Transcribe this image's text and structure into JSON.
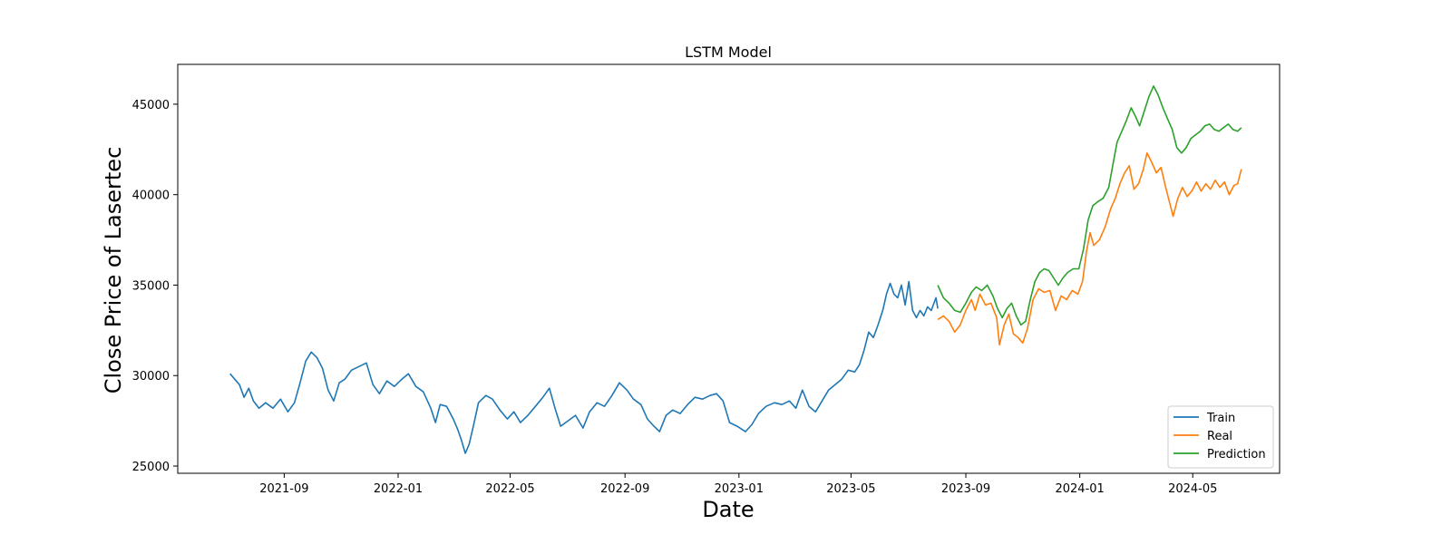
{
  "chart_data": {
    "type": "line",
    "title": "LSTM Model",
    "xlabel": "Date",
    "ylabel": "Close Price of Lasertec",
    "x_ticks": [
      "2021-09",
      "2022-01",
      "2022-05",
      "2022-09",
      "2023-01",
      "2023-05",
      "2023-09",
      "2024-01",
      "2024-05"
    ],
    "y_ticks": [
      25000,
      30000,
      35000,
      40000,
      45000
    ],
    "xlim": [
      "2021-05-10",
      "2024-08-02"
    ],
    "ylim": [
      24600,
      47200
    ],
    "grid": false,
    "legend_position": "bottom-right",
    "series": [
      {
        "name": "Train",
        "color": "#1f77b4",
        "points": [
          [
            "2021-07-05",
            30100
          ],
          [
            "2021-07-10",
            29800
          ],
          [
            "2021-07-15",
            29500
          ],
          [
            "2021-07-20",
            28800
          ],
          [
            "2021-07-25",
            29300
          ],
          [
            "2021-07-30",
            28600
          ],
          [
            "2021-08-05",
            28200
          ],
          [
            "2021-08-12",
            28500
          ],
          [
            "2021-08-20",
            28200
          ],
          [
            "2021-08-28",
            28700
          ],
          [
            "2021-09-05",
            28000
          ],
          [
            "2021-09-12",
            28500
          ],
          [
            "2021-09-18",
            29600
          ],
          [
            "2021-09-24",
            30800
          ],
          [
            "2021-09-30",
            31300
          ],
          [
            "2021-10-06",
            31000
          ],
          [
            "2021-10-12",
            30400
          ],
          [
            "2021-10-18",
            29200
          ],
          [
            "2021-10-24",
            28600
          ],
          [
            "2021-10-30",
            29600
          ],
          [
            "2021-11-05",
            29800
          ],
          [
            "2021-11-12",
            30300
          ],
          [
            "2021-11-20",
            30500
          ],
          [
            "2021-11-28",
            30700
          ],
          [
            "2021-12-05",
            29500
          ],
          [
            "2021-12-12",
            29000
          ],
          [
            "2021-12-20",
            29700
          ],
          [
            "2021-12-28",
            29400
          ],
          [
            "2022-01-05",
            29800
          ],
          [
            "2022-01-12",
            30100
          ],
          [
            "2022-01-20",
            29400
          ],
          [
            "2022-01-28",
            29100
          ],
          [
            "2022-02-05",
            28200
          ],
          [
            "2022-02-10",
            27400
          ],
          [
            "2022-02-15",
            28400
          ],
          [
            "2022-02-22",
            28300
          ],
          [
            "2022-03-01",
            27600
          ],
          [
            "2022-03-06",
            27000
          ],
          [
            "2022-03-10",
            26400
          ],
          [
            "2022-03-14",
            25700
          ],
          [
            "2022-03-18",
            26200
          ],
          [
            "2022-03-23",
            27300
          ],
          [
            "2022-03-28",
            28500
          ],
          [
            "2022-04-05",
            28900
          ],
          [
            "2022-04-12",
            28700
          ],
          [
            "2022-04-20",
            28100
          ],
          [
            "2022-04-28",
            27600
          ],
          [
            "2022-05-05",
            28000
          ],
          [
            "2022-05-12",
            27400
          ],
          [
            "2022-05-20",
            27800
          ],
          [
            "2022-05-28",
            28300
          ],
          [
            "2022-06-05",
            28800
          ],
          [
            "2022-06-12",
            29300
          ],
          [
            "2022-06-18",
            28200
          ],
          [
            "2022-06-24",
            27200
          ],
          [
            "2022-07-02",
            27500
          ],
          [
            "2022-07-10",
            27800
          ],
          [
            "2022-07-18",
            27100
          ],
          [
            "2022-07-25",
            28000
          ],
          [
            "2022-08-02",
            28500
          ],
          [
            "2022-08-10",
            28300
          ],
          [
            "2022-08-18",
            28900
          ],
          [
            "2022-08-26",
            29600
          ],
          [
            "2022-09-03",
            29200
          ],
          [
            "2022-09-10",
            28700
          ],
          [
            "2022-09-18",
            28400
          ],
          [
            "2022-09-25",
            27600
          ],
          [
            "2022-10-02",
            27200
          ],
          [
            "2022-10-08",
            26900
          ],
          [
            "2022-10-15",
            27800
          ],
          [
            "2022-10-22",
            28100
          ],
          [
            "2022-10-30",
            27900
          ],
          [
            "2022-11-07",
            28400
          ],
          [
            "2022-11-15",
            28800
          ],
          [
            "2022-11-23",
            28700
          ],
          [
            "2022-12-01",
            28900
          ],
          [
            "2022-12-08",
            29000
          ],
          [
            "2022-12-15",
            28600
          ],
          [
            "2022-12-22",
            27400
          ],
          [
            "2022-12-30",
            27200
          ],
          [
            "2023-01-08",
            26900
          ],
          [
            "2023-01-15",
            27300
          ],
          [
            "2023-01-22",
            27900
          ],
          [
            "2023-01-30",
            28300
          ],
          [
            "2023-02-08",
            28500
          ],
          [
            "2023-02-16",
            28400
          ],
          [
            "2023-02-24",
            28600
          ],
          [
            "2023-03-03",
            28200
          ],
          [
            "2023-03-10",
            29200
          ],
          [
            "2023-03-17",
            28300
          ],
          [
            "2023-03-24",
            28000
          ],
          [
            "2023-03-31",
            28600
          ],
          [
            "2023-04-07",
            29200
          ],
          [
            "2023-04-14",
            29500
          ],
          [
            "2023-04-21",
            29800
          ],
          [
            "2023-04-28",
            30300
          ],
          [
            "2023-05-05",
            30200
          ],
          [
            "2023-05-10",
            30600
          ],
          [
            "2023-05-15",
            31400
          ],
          [
            "2023-05-20",
            32400
          ],
          [
            "2023-05-25",
            32100
          ],
          [
            "2023-05-30",
            32800
          ],
          [
            "2023-06-04",
            33600
          ],
          [
            "2023-06-08",
            34500
          ],
          [
            "2023-06-12",
            35100
          ],
          [
            "2023-06-16",
            34500
          ],
          [
            "2023-06-20",
            34300
          ],
          [
            "2023-06-24",
            35000
          ],
          [
            "2023-06-28",
            33900
          ],
          [
            "2023-07-02",
            35200
          ],
          [
            "2023-07-06",
            33600
          ],
          [
            "2023-07-10",
            33200
          ],
          [
            "2023-07-14",
            33600
          ],
          [
            "2023-07-18",
            33300
          ],
          [
            "2023-07-22",
            33800
          ],
          [
            "2023-07-26",
            33600
          ],
          [
            "2023-07-31",
            34300
          ],
          [
            "2023-08-02",
            33700
          ]
        ]
      },
      {
        "name": "Real",
        "color": "#ff7f0e",
        "points": [
          [
            "2023-08-02",
            33100
          ],
          [
            "2023-08-08",
            33300
          ],
          [
            "2023-08-14",
            33000
          ],
          [
            "2023-08-20",
            32400
          ],
          [
            "2023-08-26",
            32800
          ],
          [
            "2023-09-01",
            33600
          ],
          [
            "2023-09-07",
            34200
          ],
          [
            "2023-09-11",
            33600
          ],
          [
            "2023-09-16",
            34500
          ],
          [
            "2023-09-22",
            33900
          ],
          [
            "2023-09-28",
            34000
          ],
          [
            "2023-10-04",
            33200
          ],
          [
            "2023-10-07",
            31700
          ],
          [
            "2023-10-12",
            32800
          ],
          [
            "2023-10-17",
            33400
          ],
          [
            "2023-10-22",
            32300
          ],
          [
            "2023-10-27",
            32100
          ],
          [
            "2023-11-01",
            31800
          ],
          [
            "2023-11-06",
            32600
          ],
          [
            "2023-11-12",
            34200
          ],
          [
            "2023-11-18",
            34800
          ],
          [
            "2023-11-24",
            34600
          ],
          [
            "2023-11-30",
            34700
          ],
          [
            "2023-12-06",
            33600
          ],
          [
            "2023-12-12",
            34400
          ],
          [
            "2023-12-18",
            34200
          ],
          [
            "2023-12-24",
            34700
          ],
          [
            "2023-12-30",
            34500
          ],
          [
            "2024-01-04",
            35200
          ],
          [
            "2024-01-08",
            36800
          ],
          [
            "2024-01-12",
            37900
          ],
          [
            "2024-01-16",
            37200
          ],
          [
            "2024-01-22",
            37500
          ],
          [
            "2024-01-28",
            38200
          ],
          [
            "2024-02-03",
            39200
          ],
          [
            "2024-02-08",
            39800
          ],
          [
            "2024-02-13",
            40600
          ],
          [
            "2024-02-18",
            41200
          ],
          [
            "2024-02-23",
            41600
          ],
          [
            "2024-02-28",
            40300
          ],
          [
            "2024-03-04",
            40600
          ],
          [
            "2024-03-09",
            41400
          ],
          [
            "2024-03-13",
            42300
          ],
          [
            "2024-03-18",
            41800
          ],
          [
            "2024-03-23",
            41200
          ],
          [
            "2024-03-28",
            41500
          ],
          [
            "2024-04-02",
            40400
          ],
          [
            "2024-04-06",
            39600
          ],
          [
            "2024-04-10",
            38800
          ],
          [
            "2024-04-15",
            39800
          ],
          [
            "2024-04-20",
            40400
          ],
          [
            "2024-04-25",
            39900
          ],
          [
            "2024-04-30",
            40200
          ],
          [
            "2024-05-05",
            40700
          ],
          [
            "2024-05-10",
            40200
          ],
          [
            "2024-05-15",
            40600
          ],
          [
            "2024-05-20",
            40300
          ],
          [
            "2024-05-25",
            40800
          ],
          [
            "2024-05-30",
            40400
          ],
          [
            "2024-06-04",
            40700
          ],
          [
            "2024-06-09",
            40000
          ],
          [
            "2024-06-14",
            40500
          ],
          [
            "2024-06-18",
            40600
          ],
          [
            "2024-06-22",
            41400
          ]
        ]
      },
      {
        "name": "Prediction",
        "color": "#2ca02c",
        "points": [
          [
            "2023-08-02",
            35000
          ],
          [
            "2023-08-08",
            34300
          ],
          [
            "2023-08-14",
            34000
          ],
          [
            "2023-08-20",
            33600
          ],
          [
            "2023-08-26",
            33500
          ],
          [
            "2023-09-01",
            34000
          ],
          [
            "2023-09-07",
            34600
          ],
          [
            "2023-09-12",
            34900
          ],
          [
            "2023-09-18",
            34700
          ],
          [
            "2023-09-24",
            35000
          ],
          [
            "2023-09-30",
            34400
          ],
          [
            "2023-10-05",
            33700
          ],
          [
            "2023-10-10",
            33200
          ],
          [
            "2023-10-15",
            33700
          ],
          [
            "2023-10-20",
            34000
          ],
          [
            "2023-10-25",
            33300
          ],
          [
            "2023-10-30",
            32800
          ],
          [
            "2023-11-04",
            33000
          ],
          [
            "2023-11-09",
            34200
          ],
          [
            "2023-11-14",
            35200
          ],
          [
            "2023-11-19",
            35700
          ],
          [
            "2023-11-24",
            35900
          ],
          [
            "2023-11-29",
            35800
          ],
          [
            "2023-12-04",
            35400
          ],
          [
            "2023-12-09",
            35000
          ],
          [
            "2023-12-14",
            35400
          ],
          [
            "2023-12-19",
            35700
          ],
          [
            "2023-12-25",
            35900
          ],
          [
            "2023-12-31",
            35900
          ],
          [
            "2024-01-05",
            37000
          ],
          [
            "2024-01-10",
            38600
          ],
          [
            "2024-01-15",
            39400
          ],
          [
            "2024-01-20",
            39600
          ],
          [
            "2024-01-26",
            39800
          ],
          [
            "2024-02-01",
            40400
          ],
          [
            "2024-02-06",
            41800
          ],
          [
            "2024-02-10",
            42900
          ],
          [
            "2024-02-15",
            43500
          ],
          [
            "2024-02-20",
            44100
          ],
          [
            "2024-02-25",
            44800
          ],
          [
            "2024-03-01",
            44300
          ],
          [
            "2024-03-05",
            43800
          ],
          [
            "2024-03-10",
            44600
          ],
          [
            "2024-03-15",
            45400
          ],
          [
            "2024-03-20",
            46000
          ],
          [
            "2024-03-25",
            45500
          ],
          [
            "2024-03-30",
            44800
          ],
          [
            "2024-04-04",
            44200
          ],
          [
            "2024-04-09",
            43600
          ],
          [
            "2024-04-14",
            42600
          ],
          [
            "2024-04-19",
            42300
          ],
          [
            "2024-04-24",
            42600
          ],
          [
            "2024-04-29",
            43100
          ],
          [
            "2024-05-04",
            43300
          ],
          [
            "2024-05-09",
            43500
          ],
          [
            "2024-05-14",
            43800
          ],
          [
            "2024-05-19",
            43900
          ],
          [
            "2024-05-24",
            43600
          ],
          [
            "2024-05-29",
            43500
          ],
          [
            "2024-06-03",
            43700
          ],
          [
            "2024-06-08",
            43900
          ],
          [
            "2024-06-13",
            43600
          ],
          [
            "2024-06-18",
            43500
          ],
          [
            "2024-06-22",
            43700
          ]
        ]
      }
    ]
  }
}
